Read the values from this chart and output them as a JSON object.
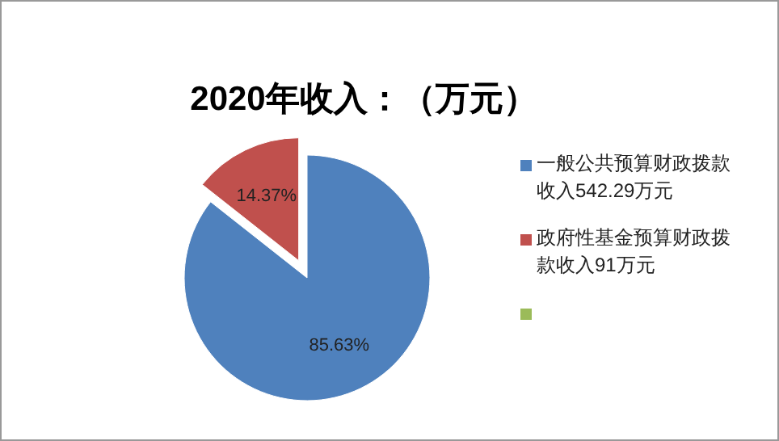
{
  "chart_data": {
    "type": "pie",
    "title": "2020年收入：（万元）",
    "categories": [
      "一般公共预算财政拨款收入542.29万元",
      "政府性基金预算财政拨款收入91万元",
      null
    ],
    "values": [
      85.63,
      14.37,
      0
    ],
    "colors": [
      "#4f81bd",
      "#c0504d",
      "#9bbb59"
    ],
    "value_labels": [
      "85.63%",
      "14.37%",
      null
    ],
    "legend": "right"
  }
}
